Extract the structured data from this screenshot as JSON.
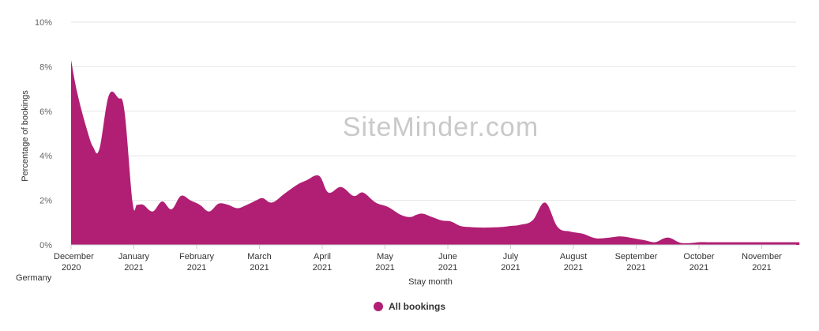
{
  "chart_data": {
    "type": "area",
    "ylabel": "Percentage of bookings",
    "xlabel": "Stay month",
    "yticks": [
      "0%",
      "2%",
      "4%",
      "6%",
      "8%",
      "10%"
    ],
    "ylim": [
      0,
      10
    ],
    "xlim": [
      0,
      11.6
    ],
    "grid": true,
    "legend_position": "bottom-center",
    "months": [
      {
        "label": "December",
        "year": "2020"
      },
      {
        "label": "January",
        "year": "2021"
      },
      {
        "label": "February",
        "year": "2021"
      },
      {
        "label": "March",
        "year": "2021"
      },
      {
        "label": "April",
        "year": "2021"
      },
      {
        "label": "May",
        "year": "2021"
      },
      {
        "label": "June",
        "year": "2021"
      },
      {
        "label": "July",
        "year": "2021"
      },
      {
        "label": "August",
        "year": "2021"
      },
      {
        "label": "September",
        "year": "2021"
      },
      {
        "label": "October",
        "year": "2021"
      },
      {
        "label": "November",
        "year": "2021"
      }
    ],
    "series": [
      {
        "name": "All bookings",
        "color": "#b01f73",
        "x": [
          0,
          0.1,
          0.25,
          0.35,
          0.45,
          0.6,
          0.75,
          0.85,
          0.98,
          1.05,
          1.15,
          1.3,
          1.45,
          1.6,
          1.75,
          1.9,
          2.05,
          2.2,
          2.35,
          2.5,
          2.65,
          2.8,
          2.95,
          3.05,
          3.2,
          3.4,
          3.6,
          3.75,
          3.95,
          4.1,
          4.3,
          4.5,
          4.65,
          4.85,
          5.05,
          5.25,
          5.4,
          5.5,
          5.6,
          5.75,
          5.9,
          6.05,
          6.2,
          6.35,
          6.5,
          6.65,
          6.85,
          7.0,
          7.15,
          7.35,
          7.55,
          7.75,
          7.95,
          8.15,
          8.35,
          8.55,
          8.75,
          8.95,
          9.15,
          9.3,
          9.45,
          9.55,
          9.7,
          9.85,
          10.0,
          10.15,
          10.35,
          10.55,
          10.75,
          10.9,
          11.05,
          11.2,
          11.35,
          11.5,
          11.6
        ],
        "y": [
          8.3,
          6.8,
          5.2,
          4.4,
          4.3,
          6.7,
          6.6,
          6.0,
          1.9,
          1.8,
          1.8,
          1.5,
          1.95,
          1.6,
          2.2,
          2.0,
          1.8,
          1.5,
          1.85,
          1.8,
          1.65,
          1.8,
          2.0,
          2.1,
          1.9,
          2.3,
          2.7,
          2.9,
          3.1,
          2.35,
          2.6,
          2.2,
          2.35,
          1.9,
          1.7,
          1.35,
          1.25,
          1.35,
          1.4,
          1.25,
          1.1,
          1.05,
          0.85,
          0.8,
          0.78,
          0.78,
          0.8,
          0.85,
          0.9,
          1.1,
          1.9,
          0.8,
          0.6,
          0.5,
          0.3,
          0.32,
          0.38,
          0.3,
          0.2,
          0.12,
          0.3,
          0.3,
          0.1,
          0.08,
          0.12,
          0.12,
          0.12,
          0.12,
          0.12,
          0.12,
          0.12,
          0.12,
          0.12,
          0.12,
          0.12
        ]
      }
    ]
  },
  "watermark": "SiteMinder.com",
  "region_label": "Germany"
}
